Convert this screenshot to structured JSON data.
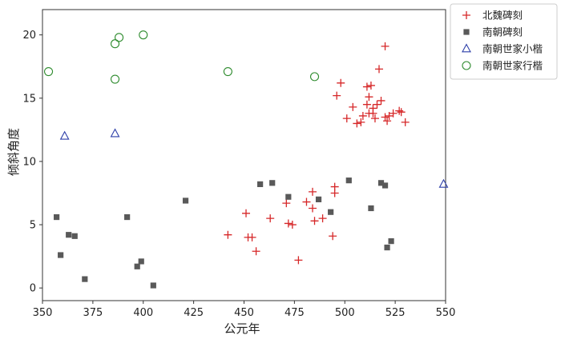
{
  "chart_data": {
    "type": "scatter",
    "xlabel": "公元年",
    "ylabel": "倾斜角度",
    "xlim": [
      350,
      550
    ],
    "ylim": [
      -1,
      22
    ],
    "xticks": [
      350,
      375,
      400,
      425,
      450,
      475,
      500,
      525,
      550
    ],
    "yticks": [
      0,
      5,
      10,
      15,
      20
    ],
    "grid": false,
    "legend_position": "outside-top-right",
    "series": [
      {
        "name": "北魏碑刻",
        "marker": "plus",
        "color": "#d62728",
        "points": [
          [
            442,
            4.2
          ],
          [
            451,
            5.9
          ],
          [
            452,
            4.0
          ],
          [
            454,
            4.0
          ],
          [
            456,
            2.9
          ],
          [
            463,
            5.5
          ],
          [
            471,
            6.7
          ],
          [
            472,
            5.1
          ],
          [
            474,
            5.0
          ],
          [
            477,
            2.2
          ],
          [
            481,
            6.8
          ],
          [
            484,
            7.6
          ],
          [
            484,
            6.3
          ],
          [
            485,
            5.3
          ],
          [
            489,
            5.5
          ],
          [
            494,
            4.1
          ],
          [
            495,
            8.0
          ],
          [
            495,
            7.5
          ],
          [
            496,
            15.2
          ],
          [
            498,
            16.2
          ],
          [
            501,
            13.4
          ],
          [
            504,
            14.3
          ],
          [
            506,
            13.0
          ],
          [
            508,
            13.1
          ],
          [
            509,
            13.6
          ],
          [
            511,
            15.9
          ],
          [
            511,
            14.5
          ],
          [
            512,
            15.1
          ],
          [
            512,
            13.8
          ],
          [
            513,
            16.0
          ],
          [
            514,
            14.2
          ],
          [
            514,
            13.8
          ],
          [
            515,
            13.4
          ],
          [
            516,
            14.5
          ],
          [
            517,
            17.3
          ],
          [
            518,
            14.8
          ],
          [
            520,
            19.1
          ],
          [
            520,
            13.5
          ],
          [
            521,
            13.2
          ],
          [
            522,
            13.6
          ],
          [
            524,
            13.8
          ],
          [
            527,
            14.0
          ],
          [
            528,
            13.9
          ],
          [
            530,
            13.1
          ]
        ]
      },
      {
        "name": "南朝碑刻",
        "marker": "square",
        "color": "#595959",
        "points": [
          [
            357,
            5.6
          ],
          [
            359,
            2.6
          ],
          [
            363,
            4.2
          ],
          [
            366,
            4.1
          ],
          [
            371,
            0.7
          ],
          [
            392,
            5.6
          ],
          [
            397,
            1.7
          ],
          [
            399,
            2.1
          ],
          [
            405,
            0.2
          ],
          [
            421,
            6.9
          ],
          [
            458,
            8.2
          ],
          [
            464,
            8.3
          ],
          [
            472,
            7.2
          ],
          [
            487,
            7.0
          ],
          [
            493,
            6.0
          ],
          [
            502,
            8.5
          ],
          [
            513,
            6.3
          ],
          [
            518,
            8.3
          ],
          [
            520,
            8.1
          ],
          [
            521,
            3.2
          ],
          [
            523,
            3.7
          ]
        ]
      },
      {
        "name": "南朝世家小楷",
        "marker": "triangle",
        "color": "#2c3ea8",
        "points": [
          [
            361,
            12.0
          ],
          [
            386,
            12.2
          ],
          [
            549,
            8.2
          ]
        ]
      },
      {
        "name": "南朝世家行楷",
        "marker": "circle",
        "color": "#2e8b2e",
        "points": [
          [
            353,
            17.1
          ],
          [
            386,
            16.5
          ],
          [
            386,
            19.3
          ],
          [
            388,
            19.8
          ],
          [
            400,
            20.0
          ],
          [
            442,
            17.1
          ],
          [
            485,
            16.7
          ]
        ]
      }
    ]
  }
}
